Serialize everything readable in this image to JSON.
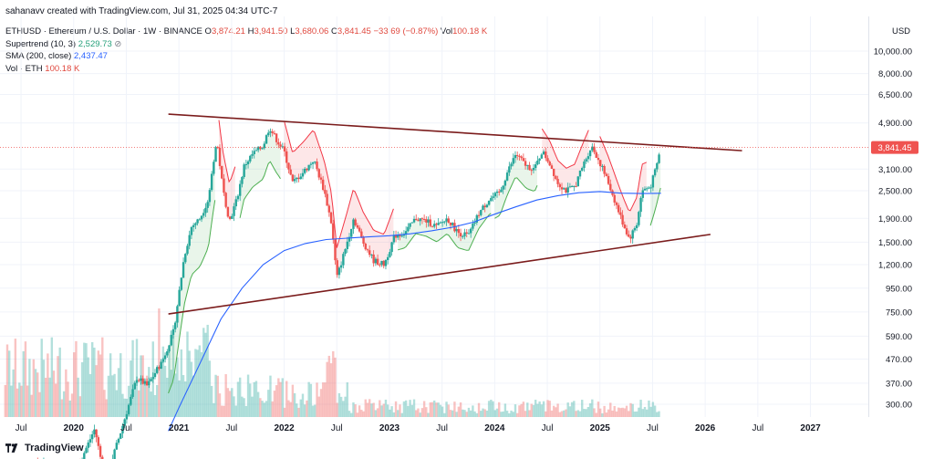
{
  "header": {
    "credit": "sahanavv created with TradingView.com, Jul 31, 2025 04:34 UTC-7"
  },
  "legend": {
    "symbol": "ETHUSD · Ethereum / U.S. Dollar · 1W · BINANCE",
    "o_label": "O",
    "o": "3,874.21",
    "h_label": "H",
    "h": "3,941.50",
    "l_label": "L",
    "l": "3,680.06",
    "c_label": "C",
    "c": "3,841.45",
    "change": "−33.69 (−0.87%)",
    "vol_label": "Vol",
    "vol": "100.18 K",
    "supertrend_label": "Supertrend (10, 3)",
    "supertrend_value": "2,529.73",
    "sma_label": "SMA (200, close)",
    "sma_value": "2,437.47",
    "volume_label": "Vol · ETH",
    "volume_value": "100.18 K"
  },
  "colors": {
    "up": "#26a69a",
    "down": "#ef5350",
    "sma": "#2962ff",
    "trendline": "#7b1c1c",
    "supertrend_up": "#4caf50",
    "supertrend_down": "#f23645",
    "price_tag": "#ef5350"
  },
  "footer": {
    "brand": "TradingView"
  },
  "chart_data": {
    "type": "candlestick",
    "title": "ETHUSD · Ethereum / U.S. Dollar · 1W · BINANCE",
    "currency": "USD",
    "scale": "log",
    "current_price": 3841.45,
    "current_price_label": "3,841.45",
    "y_ticks": [
      10000,
      8000,
      6500,
      4900,
      3100,
      2500,
      1900,
      1500,
      1200,
      950,
      750,
      590,
      470,
      370,
      300
    ],
    "y_tick_labels": [
      "10,000.00",
      "8,000.00",
      "6,500.00",
      "4,900.00",
      "3,100.00",
      "2,500.00",
      "1,900.00",
      "1,500.00",
      "1,200.00",
      "950.00",
      "750.00",
      "590.00",
      "470.00",
      "370.00",
      "300.00"
    ],
    "x_ticks": [
      {
        "label": "Jul",
        "t": 2019.5,
        "bold": false
      },
      {
        "label": "2020",
        "t": 2020.0,
        "bold": true
      },
      {
        "label": "Jul",
        "t": 2020.5,
        "bold": false
      },
      {
        "label": "2021",
        "t": 2021.0,
        "bold": true
      },
      {
        "label": "Jul",
        "t": 2021.5,
        "bold": false
      },
      {
        "label": "2022",
        "t": 2022.0,
        "bold": true
      },
      {
        "label": "Jul",
        "t": 2022.5,
        "bold": false
      },
      {
        "label": "2023",
        "t": 2023.0,
        "bold": true
      },
      {
        "label": "Jul",
        "t": 2023.5,
        "bold": false
      },
      {
        "label": "2024",
        "t": 2024.0,
        "bold": true
      },
      {
        "label": "Jul",
        "t": 2024.5,
        "bold": false
      },
      {
        "label": "2025",
        "t": 2025.0,
        "bold": true
      },
      {
        "label": "Jul",
        "t": 2025.5,
        "bold": false
      },
      {
        "label": "2026",
        "t": 2026.0,
        "bold": true
      },
      {
        "label": "Jul",
        "t": 2026.5,
        "bold": false
      },
      {
        "label": "2027",
        "t": 2027.0,
        "bold": true
      }
    ],
    "x_range": [
      2019.3,
      2027.55
    ],
    "price_path": [
      [
        2020.05,
        165
      ],
      [
        2020.2,
        235
      ],
      [
        2020.3,
        140
      ],
      [
        2020.45,
        230
      ],
      [
        2020.6,
        390
      ],
      [
        2020.7,
        360
      ],
      [
        2020.85,
        470
      ],
      [
        2020.95,
        620
      ],
      [
        2021.05,
        1300
      ],
      [
        2021.12,
        1750
      ],
      [
        2021.2,
        1900
      ],
      [
        2021.28,
        2300
      ],
      [
        2021.33,
        3400
      ],
      [
        2021.36,
        4100
      ],
      [
        2021.42,
        2500
      ],
      [
        2021.48,
        1850
      ],
      [
        2021.55,
        2300
      ],
      [
        2021.62,
        3200
      ],
      [
        2021.7,
        3600
      ],
      [
        2021.8,
        3900
      ],
      [
        2021.86,
        4700
      ],
      [
        2021.92,
        4200
      ],
      [
        2022.0,
        3700
      ],
      [
        2022.08,
        2700
      ],
      [
        2022.18,
        3000
      ],
      [
        2022.28,
        3400
      ],
      [
        2022.38,
        2500
      ],
      [
        2022.45,
        1800
      ],
      [
        2022.5,
        1050
      ],
      [
        2022.58,
        1400
      ],
      [
        2022.66,
        1900
      ],
      [
        2022.75,
        1500
      ],
      [
        2022.85,
        1250
      ],
      [
        2022.95,
        1200
      ],
      [
        2023.05,
        1600
      ],
      [
        2023.15,
        1650
      ],
      [
        2023.25,
        1900
      ],
      [
        2023.35,
        1850
      ],
      [
        2023.45,
        1750
      ],
      [
        2023.55,
        1900
      ],
      [
        2023.65,
        1650
      ],
      [
        2023.75,
        1600
      ],
      [
        2023.85,
        2000
      ],
      [
        2023.95,
        2300
      ],
      [
        2024.05,
        2450
      ],
      [
        2024.12,
        3000
      ],
      [
        2024.2,
        3600
      ],
      [
        2024.3,
        3200
      ],
      [
        2024.38,
        3100
      ],
      [
        2024.45,
        3700
      ],
      [
        2024.52,
        3300
      ],
      [
        2024.6,
        2700
      ],
      [
        2024.68,
        2500
      ],
      [
        2024.76,
        2600
      ],
      [
        2024.85,
        3300
      ],
      [
        2024.92,
        3900
      ],
      [
        2025.0,
        3300
      ],
      [
        2025.08,
        2700
      ],
      [
        2025.15,
        2200
      ],
      [
        2025.22,
        1800
      ],
      [
        2025.28,
        1550
      ],
      [
        2025.35,
        1800
      ],
      [
        2025.4,
        2500
      ],
      [
        2025.48,
        2600
      ],
      [
        2025.53,
        3100
      ],
      [
        2025.58,
        3841.45
      ]
    ],
    "sma_path": [
      [
        2020.9,
        230
      ],
      [
        2021.0,
        290
      ],
      [
        2021.2,
        450
      ],
      [
        2021.4,
        700
      ],
      [
        2021.6,
        950
      ],
      [
        2021.8,
        1200
      ],
      [
        2022.0,
        1380
      ],
      [
        2022.2,
        1480
      ],
      [
        2022.4,
        1540
      ],
      [
        2022.6,
        1560
      ],
      [
        2022.8,
        1580
      ],
      [
        2023.0,
        1600
      ],
      [
        2023.2,
        1630
      ],
      [
        2023.4,
        1680
      ],
      [
        2023.6,
        1740
      ],
      [
        2023.8,
        1830
      ],
      [
        2024.0,
        1980
      ],
      [
        2024.2,
        2130
      ],
      [
        2024.4,
        2280
      ],
      [
        2024.6,
        2380
      ],
      [
        2024.8,
        2450
      ],
      [
        2025.0,
        2480
      ],
      [
        2025.2,
        2440
      ],
      [
        2025.4,
        2430
      ],
      [
        2025.58,
        2437
      ]
    ],
    "trendlines": [
      {
        "name": "upper-resistance",
        "from": [
          2020.9,
          5350
        ],
        "to": [
          2026.35,
          3720
        ]
      },
      {
        "name": "lower-support",
        "from": [
          2020.9,
          735
        ],
        "to": [
          2026.05,
          1620
        ]
      }
    ],
    "volume_peak_note": "volume histogram shown at bottom of chart"
  }
}
